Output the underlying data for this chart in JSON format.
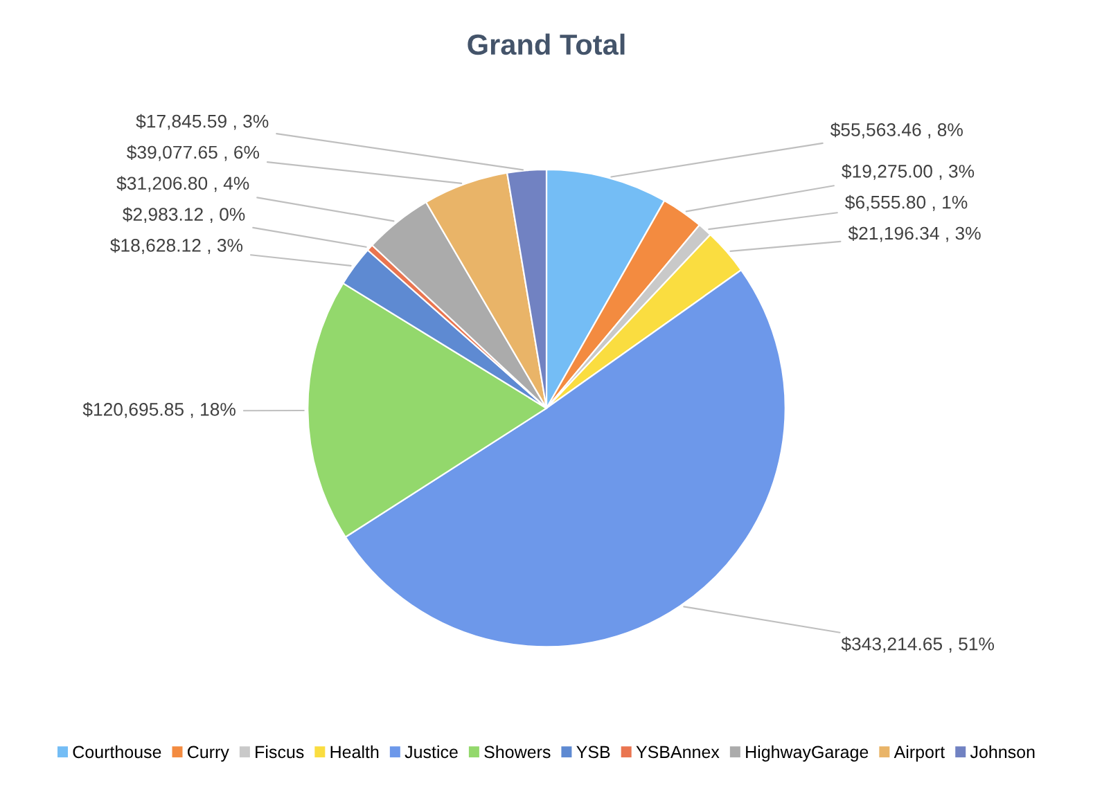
{
  "chart_data": {
    "type": "pie",
    "title": "Grand Total",
    "categories": [
      "Courthouse",
      "Curry",
      "Fiscus",
      "Health",
      "Justice",
      "Showers",
      "YSB",
      "YSBAnnex",
      "HighwayGarage",
      "Airport",
      "Johnson"
    ],
    "values": [
      55563.46,
      19275.0,
      6555.8,
      21196.34,
      343214.65,
      120695.85,
      18628.12,
      2983.12,
      31206.8,
      39077.65,
      17845.59
    ],
    "value_labels": [
      "$55,563.46 , 8%",
      "$19,275.00 , 3%",
      "$6,555.80 , 1%",
      "$21,196.34 , 3%",
      "$343,214.65 , 51%",
      "$120,695.85 , 18%",
      "$18,628.12 , 3%",
      "$2,983.12 , 0%",
      "$31,206.80 , 4%",
      "$39,077.65 , 6%",
      "$17,845.59 , 3%"
    ],
    "colors": [
      "#74bdf5",
      "#f38b40",
      "#c9c9c9",
      "#fadd40",
      "#6d98ea",
      "#93d86c",
      "#5e8ad2",
      "#ea7550",
      "#ababab",
      "#e9b468",
      "#7182c2"
    ],
    "legend": "bottom"
  }
}
